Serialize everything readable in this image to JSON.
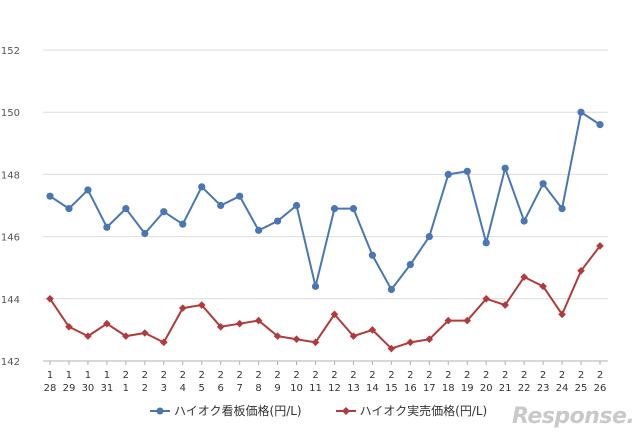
{
  "chart_data": {
    "type": "line",
    "categories": [
      [
        "1",
        "28"
      ],
      [
        "1",
        "29"
      ],
      [
        "1",
        "30"
      ],
      [
        "1",
        "31"
      ],
      [
        "2",
        "1"
      ],
      [
        "2",
        "2"
      ],
      [
        "2",
        "3"
      ],
      [
        "2",
        "4"
      ],
      [
        "2",
        "5"
      ],
      [
        "2",
        "6"
      ],
      [
        "2",
        "7"
      ],
      [
        "2",
        "8"
      ],
      [
        "2",
        "9"
      ],
      [
        "2",
        "10"
      ],
      [
        "2",
        "11"
      ],
      [
        "2",
        "12"
      ],
      [
        "2",
        "13"
      ],
      [
        "2",
        "14"
      ],
      [
        "2",
        "15"
      ],
      [
        "2",
        "16"
      ],
      [
        "2",
        "17"
      ],
      [
        "2",
        "18"
      ],
      [
        "2",
        "19"
      ],
      [
        "2",
        "20"
      ],
      [
        "2",
        "21"
      ],
      [
        "2",
        "22"
      ],
      [
        "2",
        "23"
      ],
      [
        "2",
        "24"
      ],
      [
        "2",
        "25"
      ],
      [
        "2",
        "26"
      ]
    ],
    "ylim": [
      142,
      152
    ],
    "yticks": [
      "142",
      "144",
      "146",
      "148",
      "150",
      "152"
    ],
    "grid": "horizontal",
    "legend_position": "bottom",
    "series": [
      {
        "name": "ハイオク看板価格(円/L)",
        "color": "#4a77b4",
        "marker": "circle",
        "values": [
          147.3,
          146.9,
          147.5,
          146.3,
          146.9,
          146.1,
          146.8,
          146.4,
          147.6,
          147.0,
          147.3,
          146.2,
          146.5,
          147.0,
          144.4,
          146.9,
          146.9,
          145.4,
          144.3,
          145.1,
          146.0,
          148.0,
          148.1,
          145.8,
          148.2,
          146.5,
          147.7,
          146.9,
          150.0,
          149.6
        ]
      },
      {
        "name": "ハイオク実売価格(円/L)",
        "color": "#b23a3a",
        "marker": "diamond",
        "values": [
          144.0,
          143.1,
          142.8,
          143.2,
          142.8,
          142.9,
          142.6,
          143.7,
          143.8,
          143.1,
          143.2,
          143.3,
          142.8,
          142.7,
          142.6,
          143.5,
          142.8,
          143.0,
          142.4,
          142.6,
          142.7,
          143.3,
          143.3,
          144.0,
          143.8,
          144.7,
          144.4,
          143.5,
          144.9,
          145.7
        ]
      }
    ]
  },
  "watermark": "Response."
}
